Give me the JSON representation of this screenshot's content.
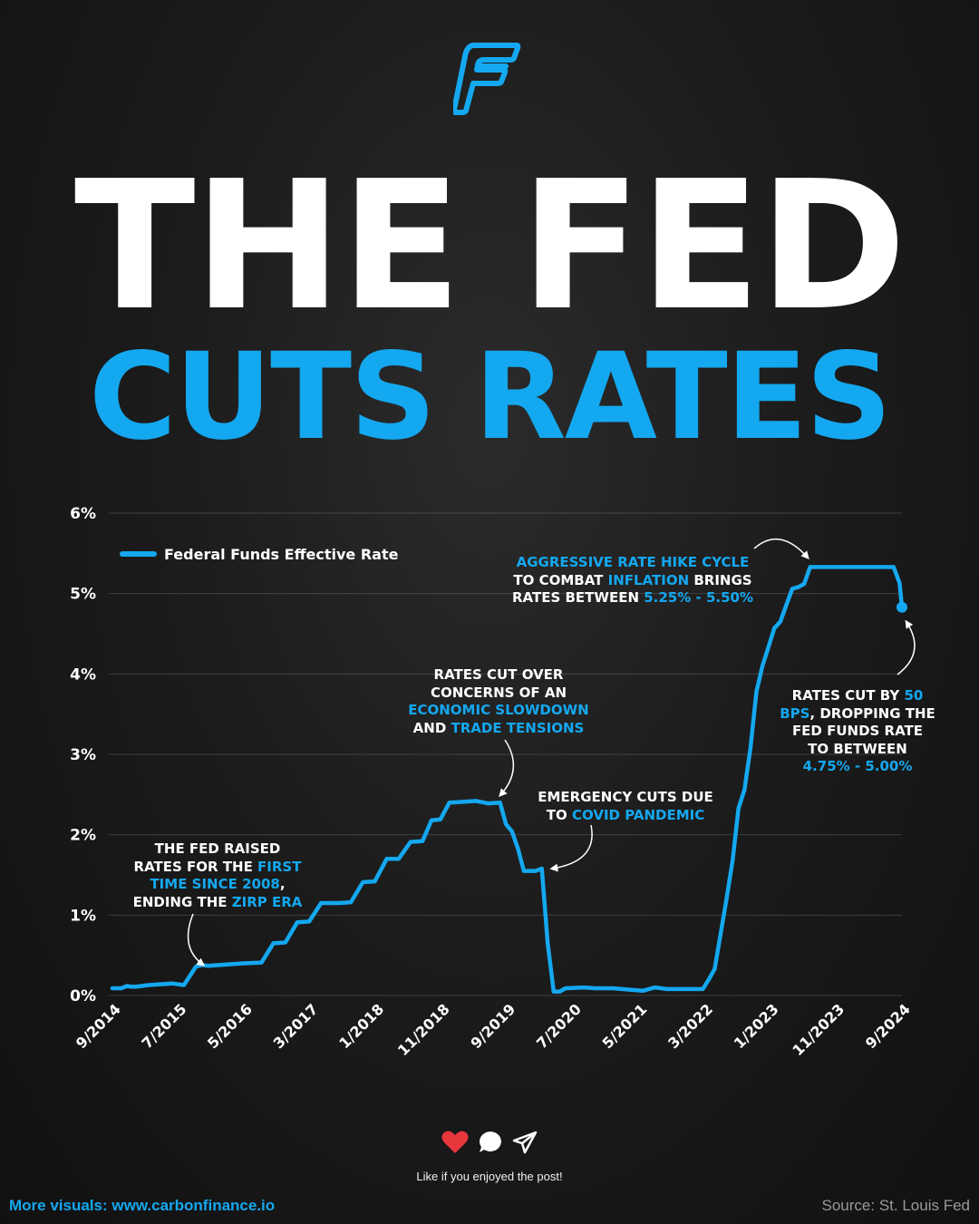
{
  "brand": {
    "accent": "#14a8f0",
    "logo_icon": "carbon-finance-f-logo"
  },
  "title": {
    "line1": "THE FED",
    "line2": "CUTS RATES"
  },
  "chart_data": {
    "type": "line",
    "series": [
      {
        "name": "Federal Funds Effective Rate",
        "color": "#14a8f0",
        "points": [
          [
            0,
            0.09
          ],
          [
            1.5,
            0.09
          ],
          [
            2.5,
            0.12
          ],
          [
            3,
            0.11
          ],
          [
            4,
            0.11
          ],
          [
            5,
            0.12
          ],
          [
            6,
            0.13
          ],
          [
            8,
            0.14
          ],
          [
            10,
            0.15
          ],
          [
            12,
            0.13
          ],
          [
            14,
            0.36
          ],
          [
            15,
            0.38
          ],
          [
            16,
            0.37
          ],
          [
            20,
            0.39
          ],
          [
            22,
            0.4
          ],
          [
            25,
            0.41
          ],
          [
            27,
            0.65
          ],
          [
            29,
            0.66
          ],
          [
            31,
            0.91
          ],
          [
            33,
            0.92
          ],
          [
            35,
            1.15
          ],
          [
            38,
            1.15
          ],
          [
            40,
            1.16
          ],
          [
            42,
            1.41
          ],
          [
            44,
            1.42
          ],
          [
            46,
            1.7
          ],
          [
            48,
            1.7
          ],
          [
            50,
            1.91
          ],
          [
            52,
            1.92
          ],
          [
            53.5,
            2.18
          ],
          [
            55,
            2.19
          ],
          [
            56.5,
            2.4
          ],
          [
            59,
            2.41
          ],
          [
            61,
            2.42
          ],
          [
            63,
            2.39
          ],
          [
            65,
            2.4
          ],
          [
            66,
            2.13
          ],
          [
            67,
            2.04
          ],
          [
            68,
            1.83
          ],
          [
            69,
            1.55
          ],
          [
            71,
            1.55
          ],
          [
            72,
            1.58
          ],
          [
            73,
            0.65
          ],
          [
            74,
            0.05
          ],
          [
            75,
            0.05
          ],
          [
            76,
            0.09
          ],
          [
            79,
            0.1
          ],
          [
            81,
            0.09
          ],
          [
            84,
            0.09
          ],
          [
            87,
            0.07
          ],
          [
            89,
            0.06
          ],
          [
            91,
            0.1
          ],
          [
            93,
            0.08
          ],
          [
            96,
            0.08
          ],
          [
            99,
            0.08
          ],
          [
            100,
            0.2
          ],
          [
            101,
            0.33
          ],
          [
            102,
            0.77
          ],
          [
            103,
            1.21
          ],
          [
            104,
            1.68
          ],
          [
            105,
            2.33
          ],
          [
            106,
            2.56
          ],
          [
            107,
            3.08
          ],
          [
            108,
            3.78
          ],
          [
            109,
            4.1
          ],
          [
            110,
            4.33
          ],
          [
            111,
            4.57
          ],
          [
            112,
            4.65
          ],
          [
            114,
            5.06
          ],
          [
            115,
            5.08
          ],
          [
            116,
            5.12
          ],
          [
            117,
            5.33
          ],
          [
            119,
            5.33
          ],
          [
            125,
            5.33
          ],
          [
            131,
            5.33
          ],
          [
            132,
            5.13
          ],
          [
            132.4,
            4.83
          ]
        ]
      }
    ],
    "x_tick_labels": [
      "9/2014",
      "7/2015",
      "5/2016",
      "3/2017",
      "1/2018",
      "11/2018",
      "9/2019",
      "7/2020",
      "5/2021",
      "3/2022",
      "1/2023",
      "11/2023",
      "9/2024"
    ],
    "y_tick_labels": [
      "0%",
      "1%",
      "2%",
      "3%",
      "4%",
      "5%",
      "6%"
    ],
    "ylim": [
      0,
      6
    ],
    "xlim_months": [
      0,
      132.4
    ],
    "legend": "top-left",
    "grid": true,
    "annotations": [
      {
        "id": "first-hike",
        "parts": [
          [
            "THE FED RAISED",
            false
          ],
          [
            "RATES FOR THE ",
            false
          ],
          [
            "FIRST",
            true
          ],
          [
            "TIME SINCE 2008",
            true
          ],
          [
            ", ",
            false
          ],
          [
            "ENDING THE ",
            false
          ],
          [
            "ZIRP ERA",
            true
          ]
        ]
      },
      {
        "id": "trade-tensions",
        "parts": [
          [
            "RATES CUT OVER",
            false
          ],
          [
            "CONCERNS OF AN",
            false
          ],
          [
            "ECONOMIC SLOWDOWN",
            true
          ],
          [
            "AND ",
            false
          ],
          [
            "TRADE TENSIONS",
            true
          ]
        ]
      },
      {
        "id": "covid",
        "parts": [
          [
            "EMERGENCY CUTS DUE",
            false
          ],
          [
            "TO ",
            false
          ],
          [
            "COVID PANDEMIC",
            true
          ]
        ]
      },
      {
        "id": "hike-cycle",
        "parts": [
          [
            "AGGRESSIVE RATE HIKE CYCLE",
            true
          ],
          [
            "TO COMBAT ",
            false
          ],
          [
            "INFLATION",
            true
          ],
          [
            " BRINGS",
            false
          ],
          [
            "RATES BETWEEN ",
            false
          ],
          [
            "5.25% - 5.50%",
            true
          ]
        ]
      },
      {
        "id": "cut-50",
        "parts": [
          [
            "RATES CUT BY ",
            false
          ],
          [
            "50",
            true
          ],
          [
            "BPS",
            true
          ],
          [
            ", DROPPING THE",
            false
          ],
          [
            "FED FUNDS RATE",
            false
          ],
          [
            "TO BETWEEN",
            false
          ],
          [
            "4.75% - 5.00%",
            true
          ]
        ]
      }
    ]
  },
  "social": {
    "like_icon": "heart-icon",
    "comment_icon": "comment-icon",
    "share_icon": "send-icon",
    "tagline": "Like if you enjoyed the post!"
  },
  "footer": {
    "visuals": "More visuals: www.carbonfinance.io",
    "source": "Source: St. Louis Fed"
  }
}
